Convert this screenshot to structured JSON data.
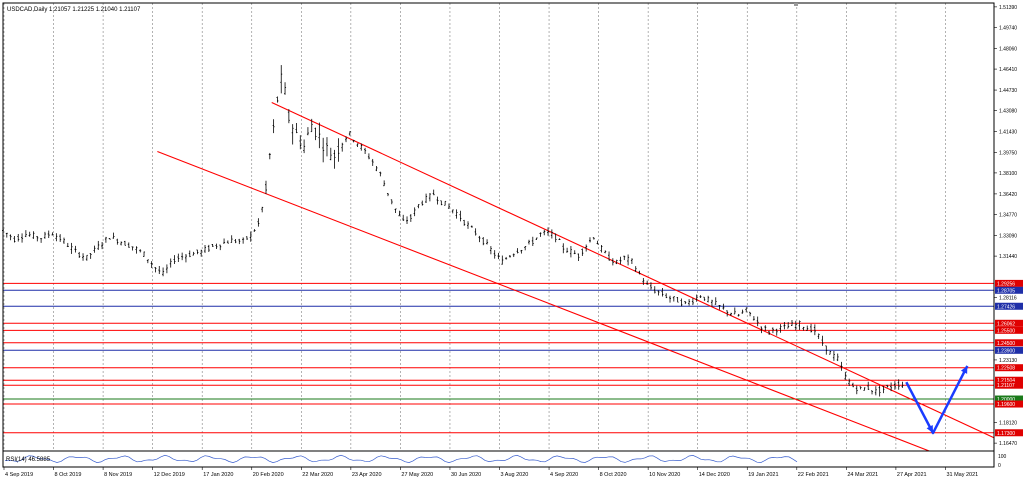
{
  "header": {
    "symbol_info": "USDCAD,Daily  1.21057  1.21225  1.21040  1.21107"
  },
  "rsi_label": "RSI(14) 46.5885",
  "rsi_axis_labels": [
    "100",
    "0"
  ],
  "colors": {
    "candle": "#000000",
    "grid": "#808080",
    "trendline": "#ff0000",
    "support_resistance_red": "#ff0000",
    "support_resistance_blue": "#1f2fa8",
    "support_green": "#1a7a1a",
    "projection_arrow": "#1a3cff",
    "price_box_red": "#e00000",
    "price_box_blue": "#1f2fa8",
    "price_box_green": "#1a7a1a"
  },
  "chart_data": {
    "type": "candlestick",
    "symbol": "USDCAD",
    "timeframe": "Daily",
    "x_tick_labels": [
      "4 Sep 2019",
      "8 Oct 2019",
      "8 Nov 2019",
      "12 Dec 2019",
      "17 Jan 2020",
      "20 Feb 2020",
      "22 Mar 2020",
      "23 Apr 2020",
      "27 May 2020",
      "30 Jun 2020",
      "3 Aug 2020",
      "4 Sep 2020",
      "8 Oct 2020",
      "10 Nov 2020",
      "14 Dec 2020",
      "19 Jan 2021",
      "22 Feb 2021",
      "24 Mar 2021",
      "27 Apr 2021",
      "31 May 2021"
    ],
    "y_tick_labels": [
      1.5139,
      1.4974,
      1.4806,
      1.4641,
      1.4473,
      1.4308,
      1.4143,
      1.3975,
      1.381,
      1.3642,
      1.3477,
      1.3309,
      1.3144,
      1.28116,
      1.2313,
      1.1812,
      1.1647
    ],
    "ylim": [
      1.1584,
      1.517
    ],
    "price_close_path": [
      [
        0,
        1.335
      ],
      [
        3,
        1.328
      ],
      [
        6,
        1.332
      ],
      [
        10,
        1.329
      ],
      [
        13,
        1.333
      ],
      [
        16,
        1.326
      ],
      [
        19,
        1.318
      ],
      [
        22,
        1.313
      ],
      [
        25,
        1.322
      ],
      [
        28,
        1.33
      ],
      [
        31,
        1.326
      ],
      [
        34,
        1.322
      ],
      [
        37,
        1.316
      ],
      [
        40,
        1.305
      ],
      [
        42,
        1.3
      ],
      [
        45,
        1.312
      ],
      [
        48,
        1.315
      ],
      [
        52,
        1.318
      ],
      [
        55,
        1.322
      ],
      [
        58,
        1.325
      ],
      [
        60,
        1.327
      ],
      [
        63,
        1.326
      ],
      [
        65,
        1.331
      ],
      [
        67,
        1.34
      ],
      [
        68,
        1.353
      ],
      [
        69,
        1.366
      ],
      [
        70,
        1.395
      ],
      [
        71,
        1.415
      ],
      [
        72,
        1.44
      ],
      [
        73,
        1.455
      ],
      [
        74,
        1.445
      ],
      [
        75,
        1.425
      ],
      [
        77,
        1.412
      ],
      [
        79,
        1.402
      ],
      [
        81,
        1.42
      ],
      [
        83,
        1.41
      ],
      [
        85,
        1.4
      ],
      [
        87,
        1.395
      ],
      [
        89,
        1.407
      ],
      [
        91,
        1.412
      ],
      [
        93,
        1.405
      ],
      [
        95,
        1.398
      ],
      [
        97,
        1.39
      ],
      [
        99,
        1.38
      ],
      [
        101,
        1.365
      ],
      [
        103,
        1.352
      ],
      [
        105,
        1.342
      ],
      [
        107,
        1.345
      ],
      [
        109,
        1.355
      ],
      [
        111,
        1.36
      ],
      [
        113,
        1.364
      ],
      [
        115,
        1.358
      ],
      [
        117,
        1.354
      ],
      [
        119,
        1.349
      ],
      [
        121,
        1.342
      ],
      [
        123,
        1.336
      ],
      [
        125,
        1.33
      ],
      [
        127,
        1.323
      ],
      [
        129,
        1.316
      ],
      [
        131,
        1.31
      ],
      [
        133,
        1.315
      ],
      [
        135,
        1.319
      ],
      [
        137,
        1.322
      ],
      [
        139,
        1.326
      ],
      [
        141,
        1.332
      ],
      [
        143,
        1.333
      ],
      [
        145,
        1.33
      ],
      [
        147,
        1.321
      ],
      [
        149,
        1.318
      ],
      [
        151,
        1.315
      ],
      [
        153,
        1.323
      ],
      [
        155,
        1.33
      ],
      [
        157,
        1.32
      ],
      [
        159,
        1.313
      ],
      [
        161,
        1.309
      ],
      [
        163,
        1.313
      ],
      [
        165,
        1.31
      ],
      [
        167,
        1.3
      ],
      [
        169,
        1.291
      ],
      [
        171,
        1.287
      ],
      [
        173,
        1.284
      ],
      [
        175,
        1.281
      ],
      [
        177,
        1.279
      ],
      [
        179,
        1.276
      ],
      [
        181,
        1.279
      ],
      [
        183,
        1.283
      ],
      [
        185,
        1.279
      ],
      [
        187,
        1.276
      ],
      [
        189,
        1.272
      ],
      [
        191,
        1.269
      ],
      [
        193,
        1.267
      ],
      [
        195,
        1.271
      ],
      [
        197,
        1.265
      ],
      [
        199,
        1.258
      ],
      [
        201,
        1.254
      ],
      [
        203,
        1.256
      ],
      [
        205,
        1.257
      ],
      [
        207,
        1.259
      ],
      [
        209,
        1.26
      ],
      [
        211,
        1.257
      ],
      [
        213,
        1.255
      ],
      [
        215,
        1.245
      ],
      [
        217,
        1.237
      ],
      [
        219,
        1.232
      ],
      [
        221,
        1.218
      ],
      [
        223,
        1.21
      ],
      [
        225,
        1.208
      ],
      [
        227,
        1.209
      ],
      [
        229,
        1.206
      ],
      [
        231,
        1.208
      ],
      [
        233,
        1.21
      ],
      [
        235,
        1.212
      ],
      [
        237,
        1.211
      ]
    ],
    "trendlines": {
      "upper": [
        [
          1.4374,
          0
        ],
        [
          1.2065,
          240
        ]
      ],
      "lower": [
        [
          1.3981,
          0
        ],
        [
          1.1584,
          240
        ]
      ]
    },
    "horizontal_levels": [
      {
        "price": 1.29256,
        "color": "red"
      },
      {
        "price": 1.28705,
        "color": "blue"
      },
      {
        "price": 1.27426,
        "color": "blue"
      },
      {
        "price": 1.26062,
        "color": "red"
      },
      {
        "price": 1.255,
        "color": "red"
      },
      {
        "price": 1.245,
        "color": "red"
      },
      {
        "price": 1.239,
        "color": "blue"
      },
      {
        "price": 1.22508,
        "color": "red"
      },
      {
        "price": 1.21504,
        "color": "red"
      },
      {
        "price": 1.21107,
        "color": "red"
      },
      {
        "price": 1.2,
        "color": "green"
      },
      {
        "price": 1.196,
        "color": "red"
      },
      {
        "price": 1.173,
        "color": "red"
      }
    ],
    "price_boxes": [
      {
        "text": "1.29256",
        "color": "red"
      },
      {
        "text": "1.28705",
        "color": "blue"
      },
      {
        "text": "1.27426",
        "color": "blue"
      },
      {
        "text": "1.26062",
        "color": "red"
      },
      {
        "text": "1.25500",
        "color": "red"
      },
      {
        "text": "1.24500",
        "color": "red"
      },
      {
        "text": "1.23900",
        "color": "blue"
      },
      {
        "text": "1.22508",
        "color": "red"
      },
      {
        "text": "1.21504",
        "color": "red"
      },
      {
        "text": "1.21107",
        "color": "red"
      },
      {
        "text": "1.20000",
        "color": "green"
      },
      {
        "text": "1.19600",
        "color": "red"
      },
      {
        "text": "1.17300",
        "color": "red"
      }
    ],
    "projection_path": [
      [
        237,
        1.2135
      ],
      [
        244,
        1.1728
      ],
      [
        253,
        1.2265
      ]
    ],
    "legend": "none",
    "grid": "vertical dashed"
  }
}
